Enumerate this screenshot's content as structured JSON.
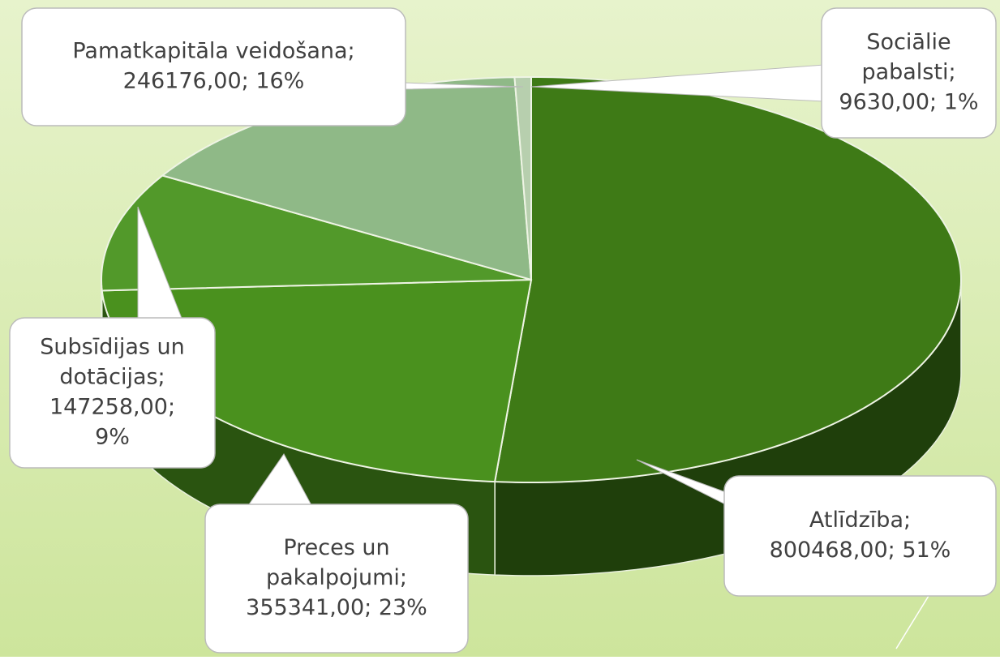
{
  "chart_data": {
    "type": "pie3d",
    "values": [
      800468,
      355341,
      147258,
      246176,
      9630
    ],
    "data_labels": [
      [
        "Atlīdzība;",
        "800468,00; 51%"
      ],
      [
        "Preces un",
        "pakalpojumi;",
        "355341,00; 23%"
      ],
      [
        "Subsīdijas un",
        "dotācijas;",
        "147258,00;",
        "9%"
      ],
      [
        "Pamatkapitāla veidošana;",
        "246176,00; 16%"
      ],
      [
        "Sociālie",
        "pabalsti;",
        "9630,00; 1%"
      ]
    ],
    "colors": [
      "#3e7a16",
      "#4a911e",
      "#52992a",
      "#8fb987",
      "#b7cfae"
    ],
    "side_colors": [
      "#1f3f0b",
      "#2a5410",
      "#2f5d14",
      "#5a7d55",
      "#7d957a"
    ]
  }
}
